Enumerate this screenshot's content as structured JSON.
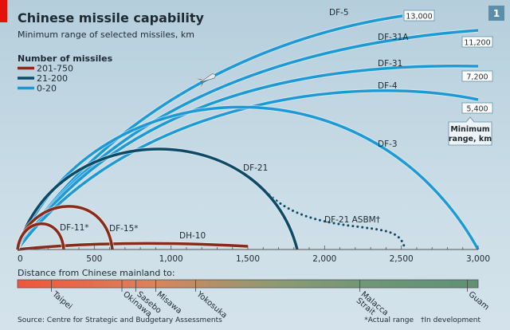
{
  "badge": "1",
  "chart_data": {
    "type": "arc-range",
    "title": "Chinese missile capability",
    "subtitle": "Minimum range of selected missiles, km",
    "legend": {
      "title": "Number of missiles",
      "placement": "top-left",
      "items": [
        {
          "label": "201-750",
          "color": "#8a2a18"
        },
        {
          "label": "21-200",
          "color": "#0d4a66"
        },
        {
          "label": "0-20",
          "color": "#1d9ad6"
        }
      ]
    },
    "x_axis": {
      "min": 0,
      "max": 3000,
      "ticks": [
        "0",
        "500",
        "1,000",
        "1,500",
        "2,000",
        "2,500",
        "3,000"
      ],
      "minor_step": 100
    },
    "series": [
      {
        "name": "DF-11*",
        "range_km": 300,
        "group": "201-750"
      },
      {
        "name": "DF-15*",
        "range_km": 600,
        "group": "201-750"
      },
      {
        "name": "DH-10",
        "range_km": 1500,
        "group": "201-750"
      },
      {
        "name": "DF-21",
        "range_km": 1800,
        "group": "21-200"
      },
      {
        "name": "DF-21 ASBM†",
        "range_km": 2500,
        "group": "21-200",
        "style": "dotted"
      },
      {
        "name": "DF-3",
        "range_km": 3000,
        "group": "0-20"
      },
      {
        "name": "DF-4",
        "range_km": 5400,
        "group": "0-20",
        "value_label": "5,400"
      },
      {
        "name": "DF-31",
        "range_km": 7200,
        "group": "0-20",
        "value_label": "7,200"
      },
      {
        "name": "DF-31A",
        "range_km": 11200,
        "group": "0-20",
        "value_label": "11,200"
      },
      {
        "name": "DF-5",
        "range_km": 13000,
        "group": "0-20",
        "value_label": "13,000"
      }
    ],
    "callout": [
      "Minimum",
      "range, km"
    ],
    "distance_bar": {
      "label": "Distance from Chinese mainland to:",
      "places": [
        {
          "name": "Taipei",
          "km": 220
        },
        {
          "name": "Okinawa",
          "km": 680
        },
        {
          "name": "Sasebo",
          "km": 770
        },
        {
          "name": "Misawa",
          "km": 900
        },
        {
          "name": "Yokosuka",
          "km": 1160
        },
        {
          "name": "Malacca Strait",
          "km": 2230
        },
        {
          "name": "Guam",
          "km": 2930
        }
      ]
    },
    "source": "Source: Centre for Strategic and Budgetary Assessments",
    "footnotes": [
      "*Actual range",
      "†In development"
    ]
  }
}
